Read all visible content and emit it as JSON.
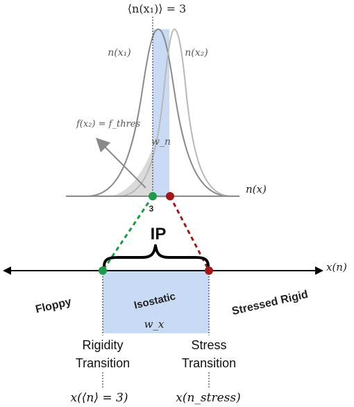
{
  "top": {
    "mean_label": "⟨n(x₁)⟩ = 3",
    "curve1_label": "n(x₁)",
    "curve2_label": "n(x₂)",
    "threshold_label": "f(x₂) = f_thres",
    "width_n_label": "w_n",
    "axis_label": "n(x)",
    "tick3_label": "3"
  },
  "bottom": {
    "ip_label": "IP",
    "axis_label": "x(n)",
    "floppy_label": "Floppy",
    "isostatic_label": "Isostatic",
    "stressed_label": "Stressed Rigid",
    "width_x_label": "w_x",
    "rigidity_line1": "Rigidity",
    "rigidity_line2": "Transition",
    "stress_line1": "Stress",
    "stress_line2": "Transition",
    "rigidity_formula": "x(⟨n⟩ = 3)",
    "stress_formula": "x(n_stress)"
  },
  "colors": {
    "band": "#c9daf5",
    "green": "#1e9a4a",
    "red": "#a01818",
    "curve_dark": "#8a8a8a",
    "curve_light": "#b8b8b8",
    "tail_fill": "#d6d6d6"
  }
}
